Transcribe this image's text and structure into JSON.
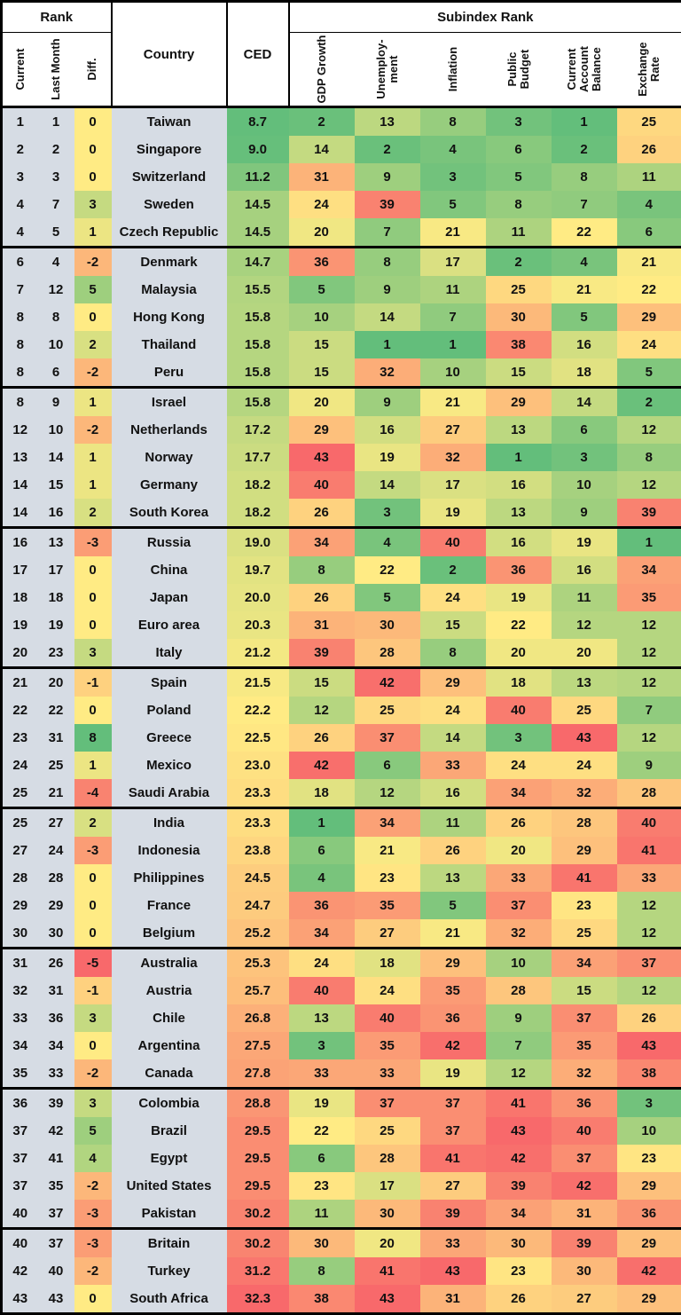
{
  "chart_data": {
    "type": "heatmap-table",
    "header": {
      "rank_group": "Rank",
      "subindex_group": "Subindex Rank",
      "country": "Country",
      "ced": "CED",
      "rank_cols": [
        "Current",
        "Last Month",
        "Diff."
      ],
      "subindex_cols": [
        "GDP Growth",
        "Unemploy-\nment",
        "Inflation",
        "Public\nBudget",
        "Current\nAccount\nBalance",
        "Exchange\nRate"
      ]
    },
    "group_size": 5,
    "rows": [
      {
        "current": "1",
        "last_month": "1",
        "diff": 0,
        "country": "Taiwan",
        "ced": "8.7",
        "subindex": [
          2,
          13,
          8,
          3,
          1,
          25
        ]
      },
      {
        "current": "2",
        "last_month": "2",
        "diff": 0,
        "country": "Singapore",
        "ced": "9.0",
        "subindex": [
          14,
          2,
          4,
          6,
          2,
          26
        ]
      },
      {
        "current": "3",
        "last_month": "3",
        "diff": 0,
        "country": "Switzerland",
        "ced": "11.2",
        "subindex": [
          31,
          9,
          3,
          5,
          8,
          11
        ]
      },
      {
        "current": "4",
        "last_month": "7",
        "diff": 3,
        "country": "Sweden",
        "ced": "14.5",
        "subindex": [
          24,
          39,
          5,
          8,
          7,
          4
        ]
      },
      {
        "current": "4",
        "last_month": "5",
        "diff": 1,
        "country": "Czech Republic",
        "ced": "14.5",
        "subindex": [
          20,
          7,
          21,
          11,
          22,
          6
        ]
      },
      {
        "current": "6",
        "last_month": "4",
        "diff": -2,
        "country": "Denmark",
        "ced": "14.7",
        "subindex": [
          36,
          8,
          17,
          2,
          4,
          21
        ]
      },
      {
        "current": "7",
        "last_month": "12",
        "diff": 5,
        "country": "Malaysia",
        "ced": "15.5",
        "subindex": [
          5,
          9,
          11,
          25,
          21,
          22
        ]
      },
      {
        "current": "8",
        "last_month": "8",
        "diff": 0,
        "country": "Hong Kong",
        "ced": "15.8",
        "subindex": [
          10,
          14,
          7,
          30,
          5,
          29
        ]
      },
      {
        "current": "8",
        "last_month": "10",
        "diff": 2,
        "country": "Thailand",
        "ced": "15.8",
        "subindex": [
          15,
          1,
          1,
          38,
          16,
          24
        ]
      },
      {
        "current": "8",
        "last_month": "6",
        "diff": -2,
        "country": "Peru",
        "ced": "15.8",
        "subindex": [
          15,
          32,
          10,
          15,
          18,
          5
        ]
      },
      {
        "current": "8",
        "last_month": "9",
        "diff": 1,
        "country": "Israel",
        "ced": "15.8",
        "subindex": [
          20,
          9,
          21,
          29,
          14,
          2
        ]
      },
      {
        "current": "12",
        "last_month": "10",
        "diff": -2,
        "country": "Netherlands",
        "ced": "17.2",
        "subindex": [
          29,
          16,
          27,
          13,
          6,
          12
        ]
      },
      {
        "current": "13",
        "last_month": "14",
        "diff": 1,
        "country": "Norway",
        "ced": "17.7",
        "subindex": [
          43,
          19,
          32,
          1,
          3,
          8
        ]
      },
      {
        "current": "14",
        "last_month": "15",
        "diff": 1,
        "country": "Germany",
        "ced": "18.2",
        "subindex": [
          40,
          14,
          17,
          16,
          10,
          12
        ]
      },
      {
        "current": "14",
        "last_month": "16",
        "diff": 2,
        "country": "South Korea",
        "ced": "18.2",
        "subindex": [
          26,
          3,
          19,
          13,
          9,
          39
        ]
      },
      {
        "current": "16",
        "last_month": "13",
        "diff": -3,
        "country": "Russia",
        "ced": "19.0",
        "subindex": [
          34,
          4,
          40,
          16,
          19,
          1
        ]
      },
      {
        "current": "17",
        "last_month": "17",
        "diff": 0,
        "country": "China",
        "ced": "19.7",
        "subindex": [
          8,
          22,
          2,
          36,
          16,
          34
        ]
      },
      {
        "current": "18",
        "last_month": "18",
        "diff": 0,
        "country": "Japan",
        "ced": "20.0",
        "subindex": [
          26,
          5,
          24,
          19,
          11,
          35
        ]
      },
      {
        "current": "19",
        "last_month": "19",
        "diff": 0,
        "country": "Euro area",
        "ced": "20.3",
        "subindex": [
          31,
          30,
          15,
          22,
          12,
          12
        ]
      },
      {
        "current": "20",
        "last_month": "23",
        "diff": 3,
        "country": "Italy",
        "ced": "21.2",
        "subindex": [
          39,
          28,
          8,
          20,
          20,
          12
        ]
      },
      {
        "current": "21",
        "last_month": "20",
        "diff": -1,
        "country": "Spain",
        "ced": "21.5",
        "subindex": [
          15,
          42,
          29,
          18,
          13,
          12
        ]
      },
      {
        "current": "22",
        "last_month": "22",
        "diff": 0,
        "country": "Poland",
        "ced": "22.2",
        "subindex": [
          12,
          25,
          24,
          40,
          25,
          7
        ]
      },
      {
        "current": "23",
        "last_month": "31",
        "diff": 8,
        "country": "Greece",
        "ced": "22.5",
        "subindex": [
          26,
          37,
          14,
          3,
          43,
          12
        ]
      },
      {
        "current": "24",
        "last_month": "25",
        "diff": 1,
        "country": "Mexico",
        "ced": "23.0",
        "subindex": [
          42,
          6,
          33,
          24,
          24,
          9
        ]
      },
      {
        "current": "25",
        "last_month": "21",
        "diff": -4,
        "country": "Saudi Arabia",
        "ced": "23.3",
        "subindex": [
          18,
          12,
          16,
          34,
          32,
          28
        ]
      },
      {
        "current": "25",
        "last_month": "27",
        "diff": 2,
        "country": "India",
        "ced": "23.3",
        "subindex": [
          1,
          34,
          11,
          26,
          28,
          40
        ]
      },
      {
        "current": "27",
        "last_month": "24",
        "diff": -3,
        "country": "Indonesia",
        "ced": "23.8",
        "subindex": [
          6,
          21,
          26,
          20,
          29,
          41
        ]
      },
      {
        "current": "28",
        "last_month": "28",
        "diff": 0,
        "country": "Philippines",
        "ced": "24.5",
        "subindex": [
          4,
          23,
          13,
          33,
          41,
          33
        ]
      },
      {
        "current": "29",
        "last_month": "29",
        "diff": 0,
        "country": "France",
        "ced": "24.7",
        "subindex": [
          36,
          35,
          5,
          37,
          23,
          12
        ]
      },
      {
        "current": "30",
        "last_month": "30",
        "diff": 0,
        "country": "Belgium",
        "ced": "25.2",
        "subindex": [
          34,
          27,
          21,
          32,
          25,
          12
        ]
      },
      {
        "current": "31",
        "last_month": "26",
        "diff": -5,
        "country": "Australia",
        "ced": "25.3",
        "subindex": [
          24,
          18,
          29,
          10,
          34,
          37
        ]
      },
      {
        "current": "32",
        "last_month": "31",
        "diff": -1,
        "country": "Austria",
        "ced": "25.7",
        "subindex": [
          40,
          24,
          35,
          28,
          15,
          12
        ]
      },
      {
        "current": "33",
        "last_month": "36",
        "diff": 3,
        "country": "Chile",
        "ced": "26.8",
        "subindex": [
          13,
          40,
          36,
          9,
          37,
          26
        ]
      },
      {
        "current": "34",
        "last_month": "34",
        "diff": 0,
        "country": "Argentina",
        "ced": "27.5",
        "subindex": [
          3,
          35,
          42,
          7,
          35,
          43
        ]
      },
      {
        "current": "35",
        "last_month": "33",
        "diff": -2,
        "country": "Canada",
        "ced": "27.8",
        "subindex": [
          33,
          33,
          19,
          12,
          32,
          38
        ]
      },
      {
        "current": "36",
        "last_month": "39",
        "diff": 3,
        "country": "Colombia",
        "ced": "28.8",
        "subindex": [
          19,
          37,
          37,
          41,
          36,
          3
        ]
      },
      {
        "current": "37",
        "last_month": "42",
        "diff": 5,
        "country": "Brazil",
        "ced": "29.5",
        "subindex": [
          22,
          25,
          37,
          43,
          40,
          10
        ]
      },
      {
        "current": "37",
        "last_month": "41",
        "diff": 4,
        "country": "Egypt",
        "ced": "29.5",
        "subindex": [
          6,
          28,
          41,
          42,
          37,
          23
        ]
      },
      {
        "current": "37",
        "last_month": "35",
        "diff": -2,
        "country": "United States",
        "ced": "29.5",
        "subindex": [
          23,
          17,
          27,
          39,
          42,
          29
        ]
      },
      {
        "current": "40",
        "last_month": "37",
        "diff": -3,
        "country": "Pakistan",
        "ced": "30.2",
        "subindex": [
          11,
          30,
          39,
          34,
          31,
          36
        ]
      },
      {
        "current": "40",
        "last_month": "37",
        "diff": -3,
        "country": "Britain",
        "ced": "30.2",
        "subindex": [
          30,
          20,
          33,
          30,
          39,
          29
        ]
      },
      {
        "current": "42",
        "last_month": "40",
        "diff": -2,
        "country": "Turkey",
        "ced": "31.2",
        "subindex": [
          8,
          41,
          43,
          23,
          30,
          42
        ]
      },
      {
        "current": "43",
        "last_month": "43",
        "diff": 0,
        "country": "South Africa",
        "ced": "32.3",
        "subindex": [
          38,
          43,
          31,
          26,
          27,
          29
        ]
      }
    ],
    "color_scales": {
      "rank": {
        "min": 1,
        "mid": 22,
        "max": 43,
        "min_color": "#63BE7B",
        "mid_color": "#FFEB84",
        "max_color": "#F8696B"
      },
      "ced": {
        "min": 8.7,
        "mid": 22.2,
        "max": 32.3,
        "min_color": "#63BE7B",
        "mid_color": "#FFEB84",
        "max_color": "#F8696B"
      },
      "diff": {
        "min": -5,
        "mid": 0,
        "max": 8,
        "min_color": "#F8696B",
        "mid_color": "#FFEB84",
        "max_color": "#63BE7B"
      }
    },
    "static_colors": {
      "row_label_bg": "#D6DCE4",
      "border": "#000000",
      "header_bg": "#FFFFFF"
    }
  }
}
